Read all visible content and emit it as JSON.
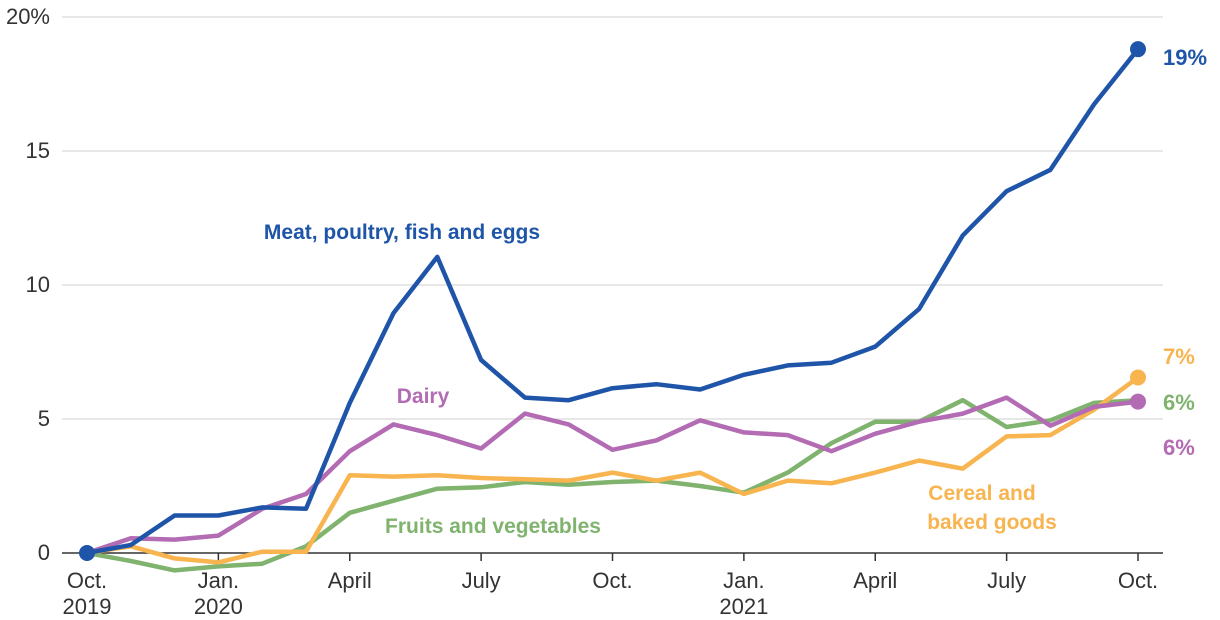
{
  "chart_data": {
    "type": "line",
    "y_ticks": [
      {
        "value": 0,
        "label": "0"
      },
      {
        "value": 5,
        "label": "5"
      },
      {
        "value": 10,
        "label": "10"
      },
      {
        "value": 15,
        "label": "15"
      },
      {
        "value": 20,
        "label": "20%"
      }
    ],
    "ylim": [
      0,
      20
    ],
    "x": [
      "2019-10",
      "2019-11",
      "2019-12",
      "2020-01",
      "2020-02",
      "2020-03",
      "2020-04",
      "2020-05",
      "2020-06",
      "2020-07",
      "2020-08",
      "2020-09",
      "2020-10",
      "2020-11",
      "2020-12",
      "2021-01",
      "2021-02",
      "2021-03",
      "2021-04",
      "2021-05",
      "2021-06",
      "2021-07",
      "2021-08",
      "2021-09",
      "2021-10"
    ],
    "x_ticks": [
      {
        "index": 0,
        "line1": "Oct.",
        "line2": "2019"
      },
      {
        "index": 3,
        "line1": "Jan.",
        "line2": "2020"
      },
      {
        "index": 6,
        "line1": "April",
        "line2": ""
      },
      {
        "index": 9,
        "line1": "July",
        "line2": ""
      },
      {
        "index": 12,
        "line1": "Oct.",
        "line2": ""
      },
      {
        "index": 15,
        "line1": "Jan.",
        "line2": "2021"
      },
      {
        "index": 18,
        "line1": "April",
        "line2": ""
      },
      {
        "index": 21,
        "line1": "July",
        "line2": ""
      },
      {
        "index": 24,
        "line1": "Oct.",
        "line2": ""
      }
    ],
    "grid": true,
    "series": [
      {
        "key": "fruits",
        "name": "Fruits and vegetables",
        "color": "#7fb36e",
        "end_label": "6%",
        "values": [
          0,
          -0.3,
          -0.65,
          -0.5,
          -0.4,
          0.25,
          1.5,
          1.95,
          2.4,
          2.45,
          2.65,
          2.55,
          2.65,
          2.7,
          2.5,
          2.25,
          3.0,
          4.1,
          4.9,
          4.9,
          5.7,
          4.7,
          4.95,
          5.6,
          5.7
        ]
      },
      {
        "key": "cereal",
        "name": "Cereal and baked goods",
        "name_lines": [
          "Cereal and",
          "baked goods"
        ],
        "color": "#f7b44f",
        "end_label": "7%",
        "values": [
          0,
          0.25,
          -0.2,
          -0.35,
          0.05,
          0.05,
          2.9,
          2.85,
          2.9,
          2.8,
          2.75,
          2.7,
          3.0,
          2.7,
          3.0,
          2.2,
          2.7,
          2.6,
          3.0,
          3.45,
          3.15,
          4.35,
          4.4,
          5.35,
          6.55
        ]
      },
      {
        "key": "dairy",
        "name": "Dairy",
        "color": "#b36bb3",
        "end_label": "6%",
        "values": [
          0,
          0.55,
          0.5,
          0.65,
          1.65,
          2.2,
          3.8,
          4.8,
          4.4,
          3.9,
          5.2,
          4.8,
          3.85,
          4.2,
          4.95,
          4.5,
          4.4,
          3.8,
          4.45,
          4.9,
          5.2,
          5.8,
          4.75,
          5.45,
          5.65
        ]
      },
      {
        "key": "meat",
        "name": "Meat, poultry, fish and eggs",
        "color": "#1f55a8",
        "end_label": "19%",
        "values": [
          0,
          0.3,
          1.4,
          1.4,
          1.7,
          1.65,
          5.6,
          8.95,
          11.05,
          7.2,
          5.8,
          5.7,
          6.15,
          6.3,
          6.1,
          6.65,
          7.0,
          7.1,
          7.7,
          9.1,
          11.85,
          13.5,
          14.3,
          16.75,
          18.8
        ]
      }
    ]
  }
}
